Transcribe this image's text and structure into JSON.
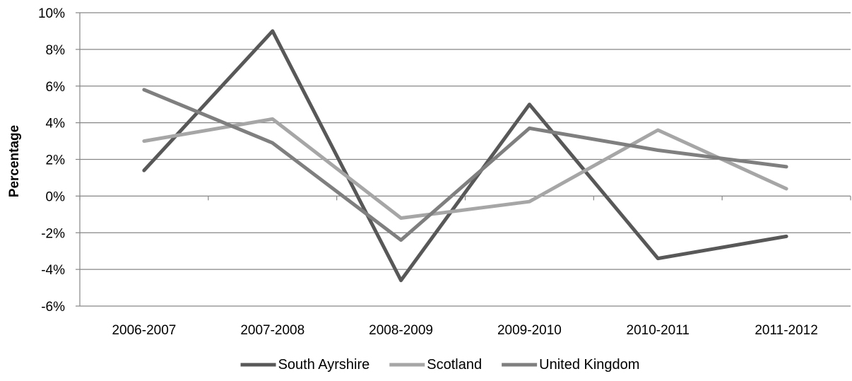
{
  "chart_data": {
    "type": "line",
    "title": "",
    "xlabel": "",
    "ylabel": "Percentage",
    "categories": [
      "2006-2007",
      "2007-2008",
      "2008-2009",
      "2009-2010",
      "2010-2011",
      "2011-2012"
    ],
    "ylim": [
      -6,
      10
    ],
    "yticks": [
      10,
      8,
      6,
      4,
      2,
      0,
      -2,
      -4,
      -6
    ],
    "ytick_labels": [
      "10%",
      "8%",
      "6%",
      "4%",
      "2%",
      "0%",
      "-2%",
      "-4%",
      "-6%"
    ],
    "grid": true,
    "legend_position": "bottom",
    "series": [
      {
        "name": "South Ayrshire",
        "color": "#585858",
        "values": [
          1.4,
          9.0,
          -4.6,
          5.0,
          -3.4,
          -2.2
        ]
      },
      {
        "name": "Scotland",
        "color": "#a6a6a6",
        "values": [
          3.0,
          4.2,
          -1.2,
          -0.3,
          3.6,
          0.4
        ]
      },
      {
        "name": "United Kingdom",
        "color": "#7f7f7f",
        "values": [
          5.8,
          2.9,
          -2.4,
          3.7,
          2.5,
          1.6
        ]
      }
    ]
  }
}
